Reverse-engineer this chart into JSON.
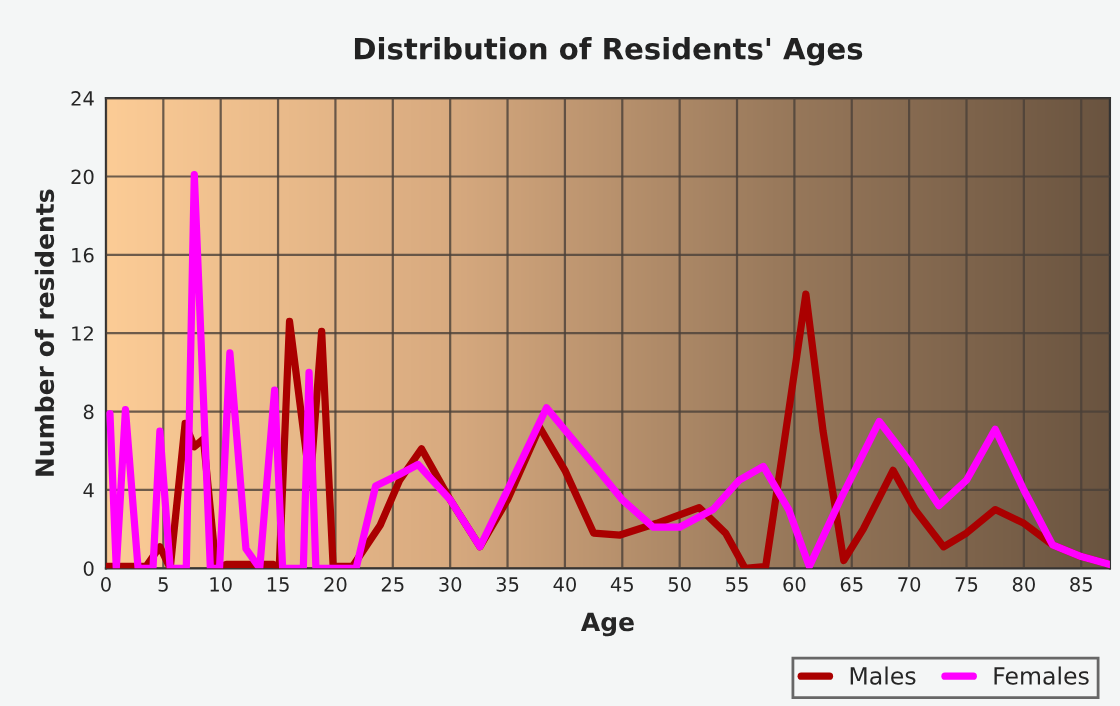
{
  "chart_data": {
    "type": "line",
    "title": "Distribution of Residents' Ages",
    "xlabel": "Age",
    "ylabel": "Number of residents",
    "xlim": [
      0,
      87.5
    ],
    "xticks": [
      0,
      5,
      10,
      15,
      20,
      25,
      30,
      35,
      40,
      45,
      50,
      55,
      60,
      65,
      70,
      75,
      80,
      85
    ],
    "ylim": [
      0,
      24
    ],
    "yticks": [
      0,
      4,
      8,
      12,
      16,
      20,
      24
    ],
    "grid": true,
    "legend": "bottom right",
    "marker": "none",
    "line_style": "solid",
    "series": [
      {
        "name": "Males",
        "color": "#aa0000",
        "x": [
          0,
          3.5,
          4.7,
          5.6,
          6.9,
          7.7,
          8.5,
          9.6,
          10.5,
          14.6,
          15.1,
          16,
          17.8,
          18.8,
          19.8,
          21.5,
          23.9,
          25.6,
          27.5,
          30,
          32.6,
          35,
          37.8,
          40,
          42.5,
          44.8,
          48,
          51.7,
          54,
          55.7,
          57.5,
          59,
          61,
          62.5,
          64.3,
          66,
          68.6,
          70.5,
          73,
          75,
          77.5,
          80,
          82.5,
          85,
          87.5
        ],
        "values": [
          0.1,
          0.1,
          1.1,
          0,
          7.4,
          6.2,
          6.6,
          0,
          0.2,
          0.2,
          0,
          12.6,
          4.3,
          12.1,
          0.1,
          0.1,
          2.2,
          4.5,
          6.1,
          3.5,
          1.1,
          3.5,
          7.2,
          5,
          1.8,
          1.7,
          2.3,
          3.1,
          1.8,
          0,
          0.1,
          6,
          14,
          7,
          0.4,
          2,
          5,
          3,
          1.1,
          1.8,
          3,
          2.3,
          1.2,
          0.6,
          0.2
        ]
      },
      {
        "name": "Females",
        "color": "#ff00ff",
        "x": [
          0.35,
          0.9,
          1.7,
          2.8,
          4.1,
          4.7,
          5.6,
          7,
          7.7,
          9.1,
          9.9,
          10.8,
          12.2,
          13.4,
          14.7,
          15.4,
          17.2,
          17.7,
          18.3,
          21.8,
          23.5,
          25.6,
          27.2,
          30,
          32.6,
          35,
          38.4,
          42.5,
          45,
          47.7,
          50,
          52.9,
          55.2,
          57.3,
          59.5,
          61.3,
          64,
          67.4,
          70,
          72.6,
          75,
          77.5,
          80,
          82.5,
          85,
          87.5
        ],
        "values": [
          7.9,
          0,
          8.1,
          0,
          0,
          7,
          0,
          0,
          20.1,
          0,
          0,
          11,
          1,
          0,
          9.1,
          0,
          0,
          10,
          0,
          0,
          4.2,
          4.8,
          5.3,
          3.5,
          1.1,
          4,
          8.2,
          5.3,
          3.5,
          2.1,
          2.1,
          3,
          4.5,
          5.2,
          3,
          0.1,
          3.5,
          7.5,
          5.5,
          3.2,
          4.5,
          7.1,
          4,
          1.2,
          0.6,
          0.2
        ]
      }
    ]
  }
}
